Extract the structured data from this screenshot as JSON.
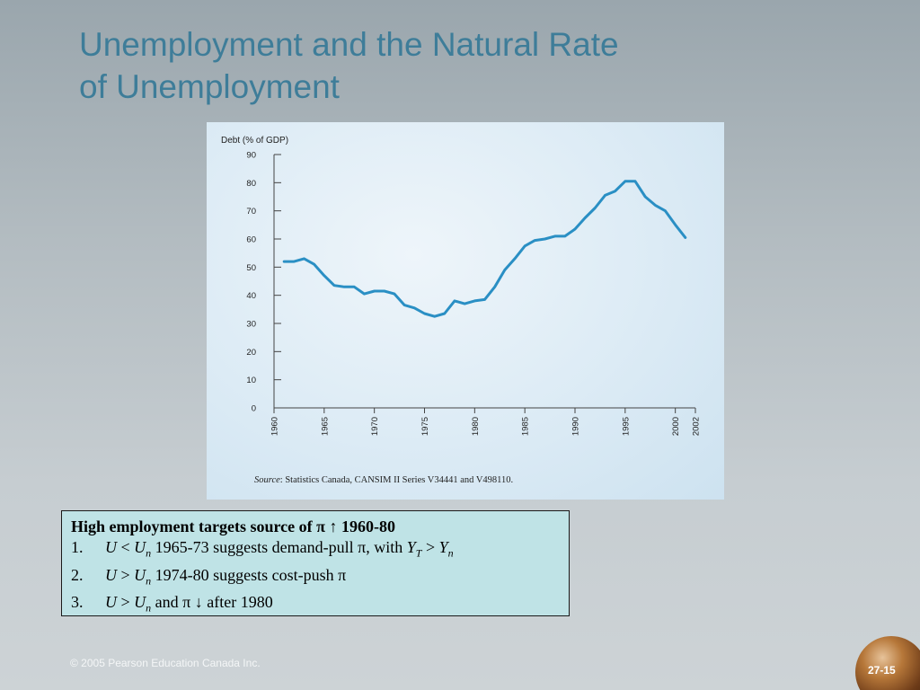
{
  "slide": {
    "title_line1": "Unemployment and the Natural Rate",
    "title_line2": "of Unemployment"
  },
  "chart_data": {
    "type": "line",
    "ylabel": "Debt  (% of GDP)",
    "ylim": [
      0,
      90
    ],
    "yticks": [
      0,
      10,
      20,
      30,
      40,
      50,
      60,
      70,
      80,
      90
    ],
    "xlim": [
      1960,
      2002
    ],
    "xticks": [
      1960,
      1965,
      1970,
      1975,
      1980,
      1985,
      1990,
      1995,
      2000,
      2002
    ],
    "grid": false,
    "series": [
      {
        "color": "#2a8fc4",
        "x": [
          1961,
          1962,
          1963,
          1964,
          1965,
          1966,
          1967,
          1968,
          1969,
          1970,
          1971,
          1972,
          1973,
          1974,
          1975,
          1976,
          1977,
          1978,
          1979,
          1980,
          1981,
          1982,
          1983,
          1984,
          1985,
          1986,
          1987,
          1988,
          1989,
          1990,
          1991,
          1992,
          1993,
          1994,
          1995,
          1996,
          1997,
          1998,
          1999,
          2000,
          2001
        ],
        "y": [
          52,
          52,
          53,
          51,
          47,
          43.5,
          43,
          43,
          40.5,
          41.5,
          41.5,
          40.5,
          36.5,
          35.5,
          33.5,
          32.5,
          33.5,
          38,
          37,
          38,
          38.5,
          43,
          49,
          53,
          57.5,
          59.5,
          60,
          61,
          61,
          63.5,
          67.5,
          71,
          75.5,
          77,
          80.5,
          80.5,
          75,
          72,
          70,
          65,
          60.5
        ]
      }
    ],
    "source_label": "Source",
    "source_text": ": Statistics Canada, CANSIM II Series V34441 and V498110."
  },
  "infobox": {
    "heading": "High employment targets source of π ↑ 1960-80",
    "items": [
      {
        "num": "1.",
        "a": "U",
        "b": " < ",
        "c": "U",
        "d": "n",
        "e": " 1965-73 suggests demand-pull π, with ",
        "f": "Y",
        "g": "T",
        "h": " > ",
        "i": "Y",
        "j": "n"
      },
      {
        "num": "2.",
        "a": "U",
        "b": " > ",
        "c": "U",
        "d": "n",
        "e": " 1974-80 suggests cost-push π"
      },
      {
        "num": "3.",
        "a": "U",
        "b": " > ",
        "c": "U",
        "d": "n",
        "e": " and π ↓ after 1980"
      }
    ]
  },
  "footer": {
    "copyright": "© 2005 Pearson Education Canada Inc.",
    "page_number": "27-15"
  },
  "colors": {
    "title": "#3e7d99",
    "chart_line": "#2a8fc4",
    "infobox_bg": "#bfe3e6"
  }
}
